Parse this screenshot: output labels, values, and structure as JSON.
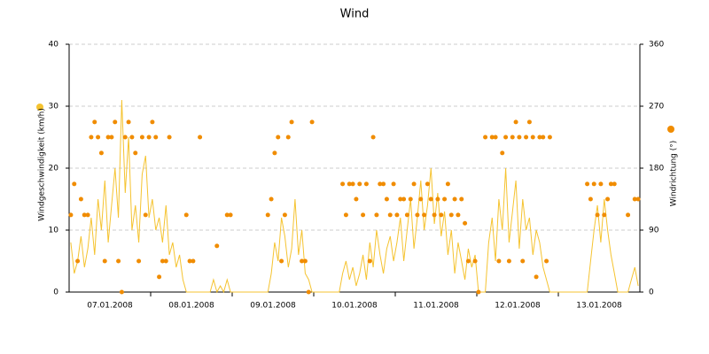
{
  "chart_data": {
    "type": "line-scatter",
    "title": "Wind",
    "categories": [
      "07.01.2008",
      "08.01.2008",
      "09.01.2008",
      "10.01.2008",
      "11.01.2008",
      "12.01.2008",
      "13.01.2008"
    ],
    "ylim": [
      0,
      40
    ],
    "yticks": [
      0,
      10,
      20,
      30,
      40
    ],
    "y2lim": [
      0,
      360
    ],
    "y2ticks": [
      0,
      90,
      180,
      270,
      360
    ],
    "grid": true,
    "series": [
      {
        "name": "Windgeschwindigkeit (km/h)",
        "color": "#f5c330",
        "kind": "line",
        "values": [
          [
            8,
            3,
            5,
            9,
            4,
            7,
            12,
            6,
            15,
            10,
            18,
            8,
            14,
            20,
            12,
            31,
            16,
            25,
            10,
            14,
            8,
            19,
            22,
            12
          ],
          [
            15,
            10,
            12,
            8,
            14,
            6,
            8,
            4,
            6,
            2,
            0,
            0,
            0,
            0,
            0,
            0,
            0,
            0,
            2,
            0,
            1,
            0,
            2,
            0
          ],
          [
            0,
            0,
            0,
            0,
            0,
            0,
            0,
            0,
            0,
            0,
            0,
            3,
            8,
            5,
            12,
            9,
            4,
            7,
            15,
            6,
            10,
            3,
            2,
            0
          ],
          [
            0,
            0,
            0,
            0,
            0,
            0,
            0,
            0,
            3,
            5,
            2,
            4,
            1,
            3,
            6,
            2,
            8,
            4,
            10,
            6,
            3,
            7,
            9,
            5
          ],
          [
            8,
            12,
            5,
            10,
            15,
            7,
            12,
            18,
            10,
            14,
            20,
            11,
            16,
            9,
            13,
            6,
            10,
            3,
            8,
            5,
            2,
            7,
            4,
            6
          ],
          [
            0,
            0,
            0,
            8,
            12,
            5,
            15,
            10,
            20,
            8,
            13,
            18,
            7,
            15,
            10,
            12,
            6,
            10,
            8,
            4,
            2,
            0,
            0,
            0
          ],
          [
            0,
            0,
            0,
            0,
            0,
            0,
            0,
            0,
            0,
            5,
            10,
            14,
            8,
            15,
            10,
            6,
            3,
            0,
            0,
            0,
            0,
            2,
            4,
            1
          ]
        ]
      },
      {
        "name": "Windrichtung (°)",
        "color": "#f08c00",
        "kind": "scatter",
        "axis": "y2",
        "values": [
          [
            112,
            157,
            45,
            135,
            112,
            112,
            225,
            247,
            225,
            202,
            45,
            225,
            225,
            247,
            45,
            0,
            225,
            247,
            225,
            202,
            45,
            225,
            112,
            225
          ],
          [
            247,
            225,
            22,
            45,
            45,
            225,
            null,
            null,
            null,
            null,
            112,
            45,
            45,
            null,
            225,
            null,
            null,
            null,
            null,
            67,
            null,
            null,
            112,
            112
          ],
          [
            null,
            null,
            null,
            null,
            null,
            null,
            null,
            null,
            null,
            null,
            112,
            135,
            202,
            225,
            45,
            112,
            225,
            247,
            null,
            null,
            45,
            45,
            0,
            247
          ],
          [
            null,
            null,
            null,
            null,
            null,
            null,
            null,
            null,
            157,
            112,
            157,
            157,
            135,
            157,
            112,
            157,
            45,
            225,
            112,
            157,
            157,
            135,
            112,
            157
          ],
          [
            112,
            135,
            135,
            112,
            135,
            157,
            112,
            135,
            112,
            157,
            135,
            112,
            135,
            112,
            135,
            157,
            112,
            135,
            112,
            135,
            100,
            45,
            null,
            45
          ],
          [
            0,
            null,
            225,
            null,
            225,
            225,
            45,
            202,
            225,
            45,
            225,
            247,
            225,
            45,
            225,
            247,
            225,
            22,
            225,
            225,
            45,
            225,
            null,
            null
          ],
          [
            null,
            null,
            null,
            null,
            null,
            null,
            null,
            null,
            157,
            135,
            157,
            112,
            157,
            112,
            135,
            157,
            157,
            null,
            null,
            null,
            112,
            null,
            135,
            135
          ]
        ]
      }
    ]
  }
}
